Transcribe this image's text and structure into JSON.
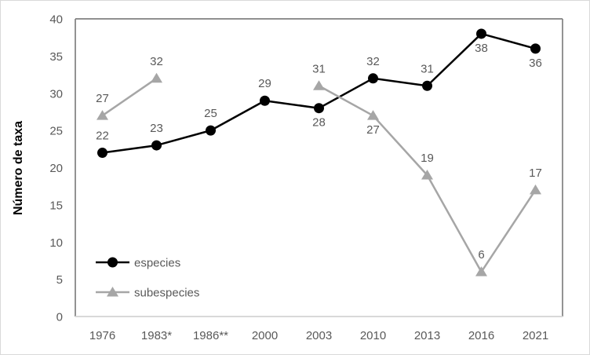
{
  "figure": {
    "background": "#ffffff",
    "border_color": "#d9d9d9"
  },
  "chart_data": {
    "type": "line",
    "title": "",
    "xlabel": "",
    "ylabel": "Número de taxa",
    "ylim": [
      0,
      40
    ],
    "ytick_step": 5,
    "ytick_labels": [
      "0",
      "5",
      "10",
      "15",
      "20",
      "25",
      "30",
      "35",
      "40"
    ],
    "categories": [
      "1976",
      "1983*",
      "1986**",
      "2000",
      "2003",
      "2010",
      "2013",
      "2016",
      "2021"
    ],
    "grid": "off",
    "legend_position": "inside-bottom-left",
    "series": [
      {
        "name": "especies",
        "color": "#000000",
        "marker": "circle",
        "values": [
          22,
          23,
          25,
          29,
          28,
          32,
          31,
          38,
          36
        ],
        "label_positions": [
          "above",
          "above",
          "above",
          "above",
          "below",
          "above",
          "above",
          "below",
          "below"
        ]
      },
      {
        "name": "subespecies",
        "color": "#a6a6a6",
        "marker": "triangle",
        "values": [
          27,
          32,
          null,
          null,
          31,
          27,
          19,
          6,
          17
        ],
        "label_positions": [
          "above",
          "above",
          null,
          null,
          "above",
          "below",
          "above",
          "above",
          "above"
        ]
      }
    ],
    "colors": {
      "plot_border": "#808080",
      "y_axis_line": "#808080",
      "x_axis_line": "#d9d9d9",
      "tick_label": "#595959",
      "data_label": "#595959",
      "legend_text": "#595959",
      "axis_title": "#000000"
    }
  }
}
